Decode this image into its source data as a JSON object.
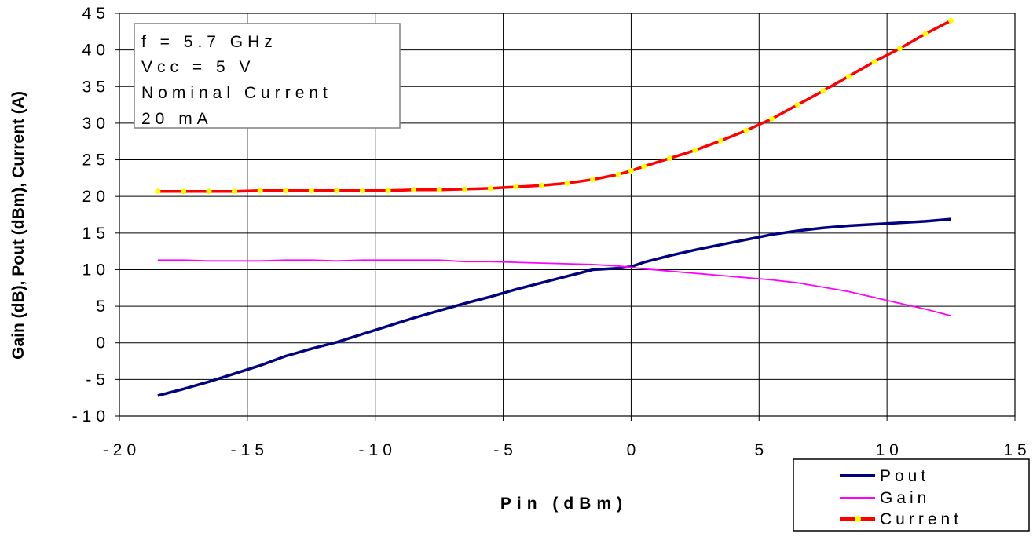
{
  "chart_data": {
    "type": "line",
    "xlabel": "Pin (dBm)",
    "ylabel": "Gain (dB), Pout (dBm), Current (A)",
    "xlim": [
      -20,
      15
    ],
    "ylim": [
      -10,
      45
    ],
    "x_ticks": [
      "-20",
      "-15",
      "-10",
      "-5",
      "0",
      "5",
      "10",
      "15"
    ],
    "y_ticks": [
      "45",
      "40",
      "35",
      "30",
      "25",
      "20",
      "15",
      "10",
      "5",
      "0",
      "-5",
      "-10"
    ],
    "grid": true,
    "annotation": [
      "f = 5.7 GHz",
      "Vcc = 5 V",
      "Nominal Current",
      "20 mA"
    ],
    "legend": {
      "position": "bottom-right"
    },
    "series": [
      {
        "name": "Pout",
        "color": "#000080",
        "x": [
          -18.5,
          -17.5,
          -16.5,
          -15.5,
          -14.5,
          -13.5,
          -12.5,
          -11.5,
          -10.5,
          -9.5,
          -8.5,
          -7.5,
          -6.5,
          -5.5,
          -4.5,
          -3.5,
          -2.5,
          -1.5,
          -0.5,
          0,
          0.5,
          1.5,
          2.5,
          3.5,
          4.5,
          5.5,
          6.5,
          7.5,
          8.5,
          9.5,
          10.5,
          11.5,
          12.5
        ],
        "y": [
          -7.2,
          -6.3,
          -5.3,
          -4.2,
          -3.1,
          -1.8,
          -0.8,
          0.1,
          1.2,
          2.3,
          3.4,
          4.4,
          5.4,
          6.3,
          7.3,
          8.2,
          9.1,
          10.0,
          10.2,
          10.4,
          11.0,
          11.9,
          12.7,
          13.4,
          14.1,
          14.8,
          15.3,
          15.7,
          16.0,
          16.2,
          16.4,
          16.6,
          16.9
        ]
      },
      {
        "name": "Gain",
        "color": "#ff00ff",
        "x": [
          -18.5,
          -17.5,
          -16.5,
          -15.5,
          -14.5,
          -13.5,
          -12.5,
          -11.5,
          -10.5,
          -9.5,
          -8.5,
          -7.5,
          -6.5,
          -5.5,
          -4.5,
          -3.5,
          -2.5,
          -1.5,
          -0.5,
          0,
          0.5,
          1.5,
          2.5,
          3.5,
          4.5,
          5.5,
          6.5,
          7.5,
          8.5,
          9.5,
          10.5,
          11.5,
          12.5
        ],
        "y": [
          11.3,
          11.3,
          11.2,
          11.2,
          11.2,
          11.3,
          11.3,
          11.2,
          11.3,
          11.3,
          11.3,
          11.3,
          11.1,
          11.1,
          11.0,
          10.9,
          10.8,
          10.7,
          10.5,
          10.3,
          10.1,
          9.8,
          9.5,
          9.2,
          8.9,
          8.6,
          8.2,
          7.6,
          7.0,
          6.2,
          5.4,
          4.6,
          3.7
        ]
      },
      {
        "name": "Current",
        "color": "#ff0000",
        "marker_color": "#ffff00",
        "x": [
          -18.5,
          -17.5,
          -16.5,
          -15.5,
          -14.5,
          -13.5,
          -12.5,
          -11.5,
          -10.5,
          -9.5,
          -8.5,
          -7.5,
          -6.5,
          -5.5,
          -4.5,
          -3.5,
          -2.5,
          -1.5,
          -0.5,
          0,
          0.5,
          1.5,
          2.5,
          3.5,
          4.5,
          5.5,
          6.5,
          7.5,
          8.5,
          9.5,
          10.5,
          11.5,
          12.5
        ],
        "y": [
          20.7,
          20.7,
          20.7,
          20.7,
          20.8,
          20.8,
          20.8,
          20.8,
          20.8,
          20.8,
          20.9,
          20.9,
          21.0,
          21.1,
          21.3,
          21.5,
          21.8,
          22.3,
          23.0,
          23.5,
          24.1,
          25.2,
          26.3,
          27.6,
          29.0,
          30.6,
          32.5,
          34.4,
          36.4,
          38.4,
          40.2,
          42.2,
          44.0
        ]
      }
    ]
  }
}
